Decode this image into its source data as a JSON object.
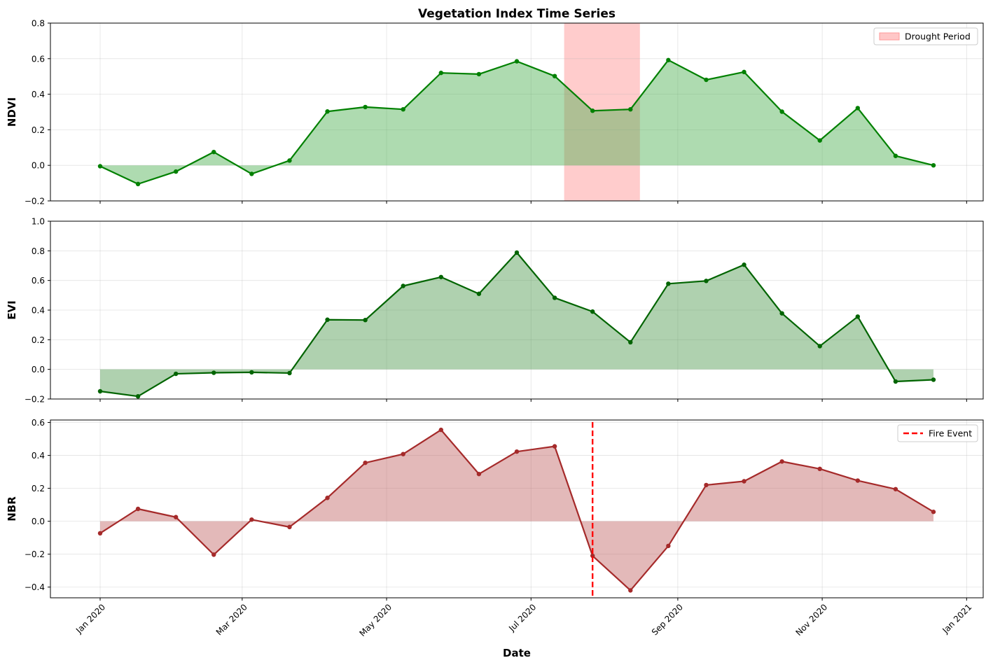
{
  "chart_data": {
    "type": "line",
    "title": "Vegetation Index Time Series",
    "xlabel": "Date",
    "x_ticks": [
      "Jan 2020",
      "Mar 2020",
      "May 2020",
      "Jul 2020",
      "Sep 2020",
      "Nov 2020",
      "Jan 2021"
    ],
    "x": [
      "2020-01-01",
      "2020-01-17",
      "2020-02-02",
      "2020-02-18",
      "2020-03-05",
      "2020-03-21",
      "2020-04-06",
      "2020-04-22",
      "2020-05-08",
      "2020-05-24",
      "2020-06-09",
      "2020-06-25",
      "2020-07-11",
      "2020-07-27",
      "2020-08-12",
      "2020-08-28",
      "2020-09-13",
      "2020-09-29",
      "2020-10-15",
      "2020-10-31",
      "2020-11-16",
      "2020-12-02",
      "2020-12-18"
    ],
    "panels": [
      {
        "ylabel": "NDVI",
        "ylim": [
          -0.2,
          0.8
        ],
        "yticks": [
          "−0.2",
          "0.0",
          "0.2",
          "0.4",
          "0.6",
          "0.8"
        ],
        "color": "#008000",
        "fill_color": "#4caf50",
        "grid": true,
        "values": [
          -0.005,
          -0.105,
          -0.035,
          0.075,
          -0.048,
          0.027,
          0.303,
          0.328,
          0.315,
          0.52,
          0.513,
          0.585,
          0.502,
          0.307,
          0.315,
          0.592,
          0.481,
          0.525,
          0.302,
          0.14,
          0.322,
          0.053,
          0.0
        ],
        "shaded_region": {
          "label": "Drought Period",
          "x_start": "2020-07-15",
          "x_end": "2020-08-16",
          "color": "#ff9999"
        },
        "legend": {
          "position": "top-right",
          "entries": [
            "Drought Period"
          ]
        }
      },
      {
        "ylabel": "EVI",
        "ylim": [
          -0.2,
          1.0
        ],
        "yticks": [
          "−0.2",
          "0.0",
          "0.2",
          "0.4",
          "0.6",
          "0.8",
          "1.0"
        ],
        "color": "#006400",
        "fill_color": "#4e9a4e",
        "grid": true,
        "values": [
          -0.148,
          -0.182,
          -0.03,
          -0.023,
          -0.02,
          -0.025,
          0.335,
          0.333,
          0.563,
          0.623,
          0.51,
          0.788,
          0.483,
          0.39,
          0.183,
          0.578,
          0.597,
          0.706,
          0.378,
          0.157,
          0.356,
          -0.082,
          -0.07
        ]
      },
      {
        "ylabel": "NBR",
        "ylim": [
          -0.465,
          0.615
        ],
        "yticks": [
          "−0.4",
          "−0.2",
          "0.0",
          "0.2",
          "0.4",
          "0.6"
        ],
        "color": "#a52a2a",
        "fill_color": "#c06464",
        "grid": true,
        "values": [
          -0.073,
          0.075,
          0.025,
          -0.203,
          0.01,
          -0.035,
          0.142,
          0.355,
          0.408,
          0.555,
          0.287,
          0.423,
          0.455,
          -0.21,
          -0.42,
          -0.15,
          0.22,
          0.243,
          0.363,
          0.318,
          0.247,
          0.195,
          0.057
        ],
        "event_line": {
          "label": "Fire Event",
          "x": "2020-07-27",
          "color": "#ff0000"
        },
        "legend": {
          "position": "top-right",
          "entries": [
            "Fire Event"
          ]
        }
      }
    ]
  }
}
